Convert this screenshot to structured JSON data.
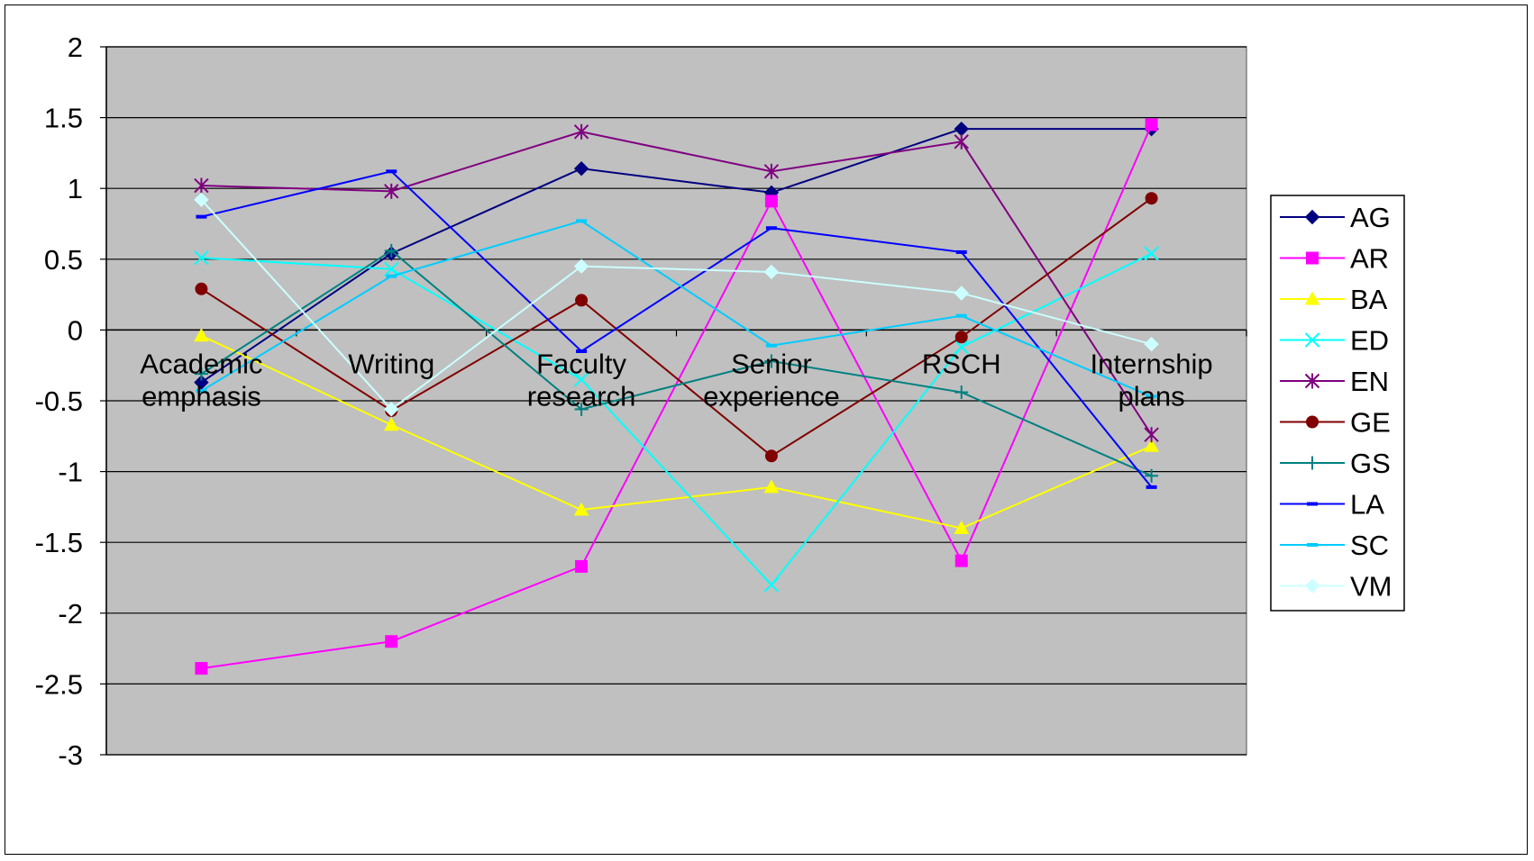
{
  "chart_data": {
    "type": "line",
    "categories": [
      [
        "Academic",
        "emphasis"
      ],
      [
        "Writing"
      ],
      [
        "Faculty",
        "research"
      ],
      [
        "Senior",
        "experience"
      ],
      [
        "RSCH"
      ],
      [
        "Internship",
        "plans"
      ]
    ],
    "ylim": [
      -3,
      2
    ],
    "yticks": [
      2,
      1.5,
      1,
      0.5,
      0,
      -0.5,
      -1,
      -1.5,
      -2,
      -2.5,
      -3
    ],
    "ytick_labels": [
      "2",
      "1.5",
      "1",
      "0.5",
      "0",
      "-0.5",
      "-1",
      "-1.5",
      "-2",
      "-2.5",
      "-3"
    ],
    "grid": "horizontal",
    "plot_background": "#c0c0c0",
    "legend_position": "right",
    "series": [
      {
        "name": "AG",
        "color": "#000080",
        "marker": "diamond",
        "values": [
          -0.37,
          0.54,
          1.14,
          0.97,
          1.42,
          1.42
        ]
      },
      {
        "name": "AR",
        "color": "#ff00ff",
        "marker": "square",
        "values": [
          -2.39,
          -2.2,
          -1.67,
          0.91,
          -1.63,
          1.45
        ]
      },
      {
        "name": "BA",
        "color": "#ffff00",
        "marker": "triangle",
        "values": [
          -0.04,
          -0.67,
          -1.27,
          -1.11,
          -1.4,
          -0.82
        ]
      },
      {
        "name": "ED",
        "color": "#00ffff",
        "marker": "x",
        "values": [
          0.51,
          0.43,
          -0.35,
          -1.8,
          -0.12,
          0.54
        ]
      },
      {
        "name": "EN",
        "color": "#800080",
        "marker": "star",
        "values": [
          1.02,
          0.98,
          1.4,
          1.12,
          1.33,
          -0.74
        ]
      },
      {
        "name": "GE",
        "color": "#800000",
        "marker": "circle",
        "values": [
          0.29,
          -0.57,
          0.21,
          -0.89,
          -0.05,
          0.93
        ]
      },
      {
        "name": "GS",
        "color": "#008080",
        "marker": "plus",
        "values": [
          -0.31,
          0.56,
          -0.56,
          -0.22,
          -0.44,
          -1.03
        ]
      },
      {
        "name": "LA",
        "color": "#0000ff",
        "marker": "dash",
        "values": [
          0.8,
          1.12,
          -0.15,
          0.72,
          0.55,
          -1.11
        ]
      },
      {
        "name": "SC",
        "color": "#00ccff",
        "marker": "dash",
        "values": [
          -0.43,
          0.38,
          0.77,
          -0.11,
          0.1,
          -0.47
        ]
      },
      {
        "name": "VM",
        "color": "#ccffff",
        "marker": "diamond",
        "values": [
          0.92,
          -0.56,
          0.45,
          0.41,
          0.26,
          -0.1
        ]
      }
    ]
  }
}
